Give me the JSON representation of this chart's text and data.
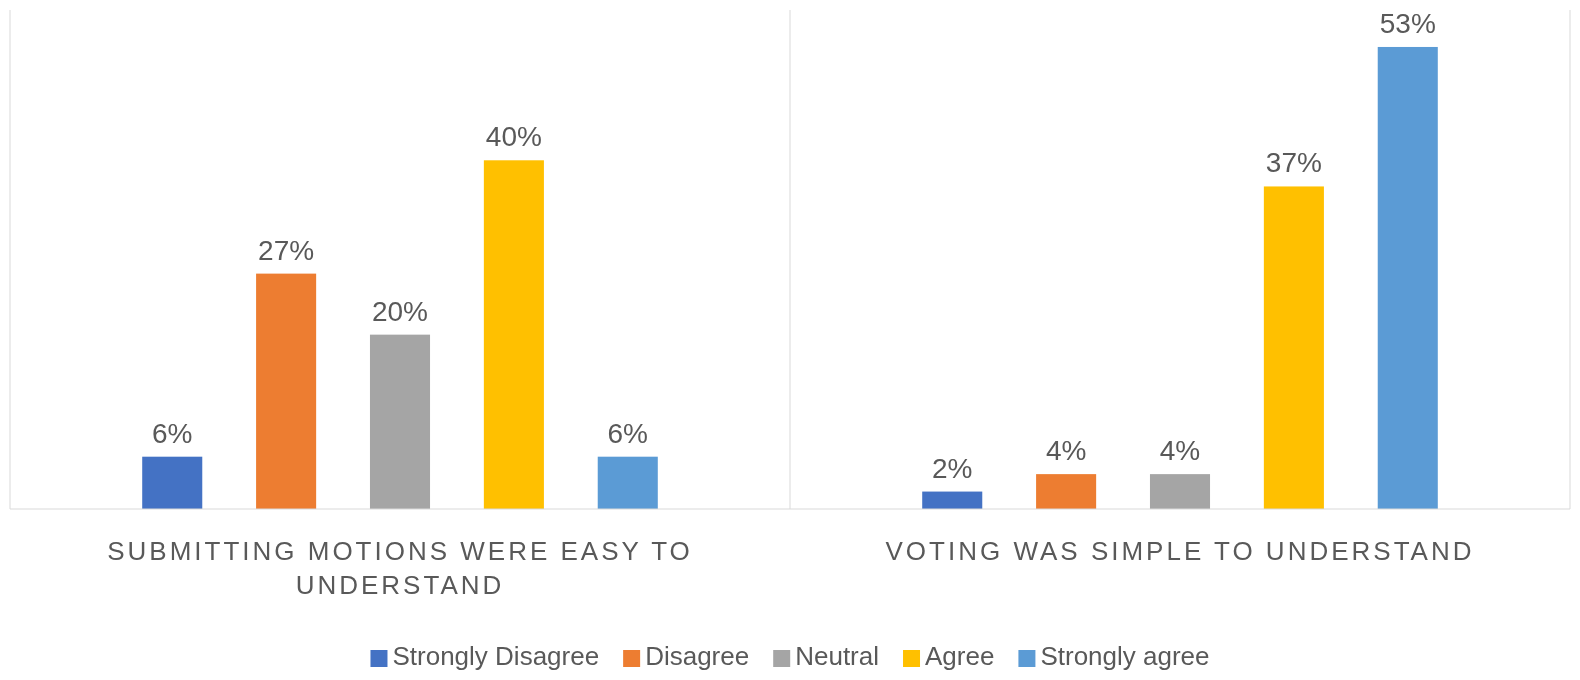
{
  "chart_data": {
    "type": "bar",
    "categories": [
      "SUBMITTING MOTIONS WERE EASY TO UNDERSTAND",
      "VOTING WAS SIMPLE TO UNDERSTAND"
    ],
    "series": [
      {
        "name": "Strongly Disagree",
        "color": "#4472c4",
        "values": [
          6,
          2
        ],
        "value_labels": [
          "6%",
          "2%"
        ]
      },
      {
        "name": "Disagree",
        "color": "#ed7d31",
        "values": [
          27,
          4
        ],
        "value_labels": [
          "27%",
          "4%"
        ]
      },
      {
        "name": "Neutral",
        "color": "#a5a5a5",
        "values": [
          20,
          4
        ],
        "value_labels": [
          "20%",
          "4%"
        ]
      },
      {
        "name": "Agree",
        "color": "#ffc000",
        "values": [
          40,
          37
        ],
        "value_labels": [
          "40%",
          "37%"
        ]
      },
      {
        "name": "Strongly agree",
        "color": "#5b9bd5",
        "values": [
          6,
          53
        ],
        "value_labels": [
          "6%",
          "53%"
        ]
      }
    ],
    "tick_labels": "x",
    "legend": "bottom"
  }
}
